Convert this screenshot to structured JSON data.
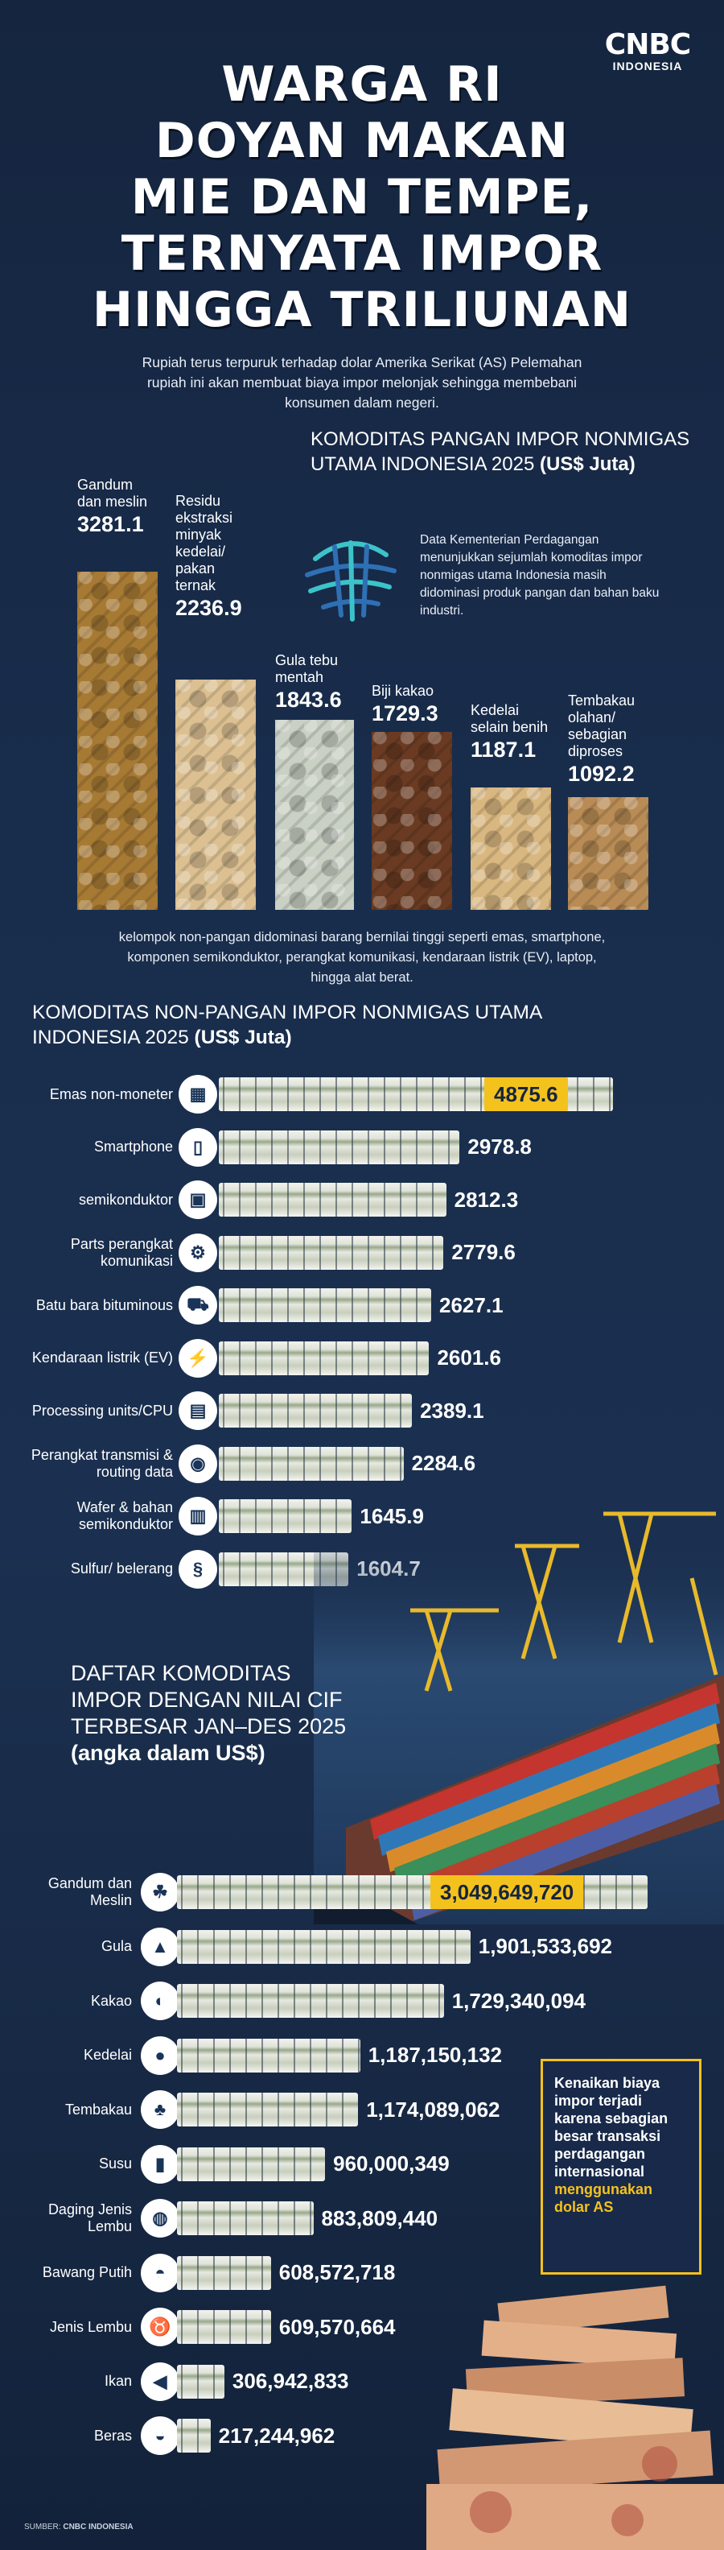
{
  "brand": {
    "name": "CNBC",
    "sub": "INDONESIA"
  },
  "title_lines": [
    "WARGA RI",
    "DOYAN MAKAN",
    "MIE DAN TEMPE,",
    "TERNYATA IMPOR",
    "HINGGA TRILIUNAN"
  ],
  "intro": "Rupiah terus terpuruk terhadap dolar Amerika Serikat (AS) Pelemahan rupiah ini akan membuat biaya impor melonjak sehingga membebani konsumen dalam negeri.",
  "section_food": {
    "title_plain": "KOMODITAS PANGAN IMPOR NONMIGAS UTAMA INDONESIA 2025",
    "title_unit": "(US$ Juta)",
    "description": "Data Kementerian Perdagangan menunjukkan sejumlah komoditas impor nonmigas utama Indonesia masih didominasi produk pangan dan bahan baku industri.",
    "icon": "ministry-logo-icon"
  },
  "commodities_note": "kelompok non-pangan didominasi barang bernilai tinggi seperti emas, smartphone, komponen semikonduktor, perangkat komunikasi, kendaraan listrik (EV), laptop, hingga alat berat.",
  "section_nonfood": {
    "title_plain": "KOMODITAS NON-PANGAN IMPOR NONMIGAS UTAMA INDONESIA 2025",
    "title_unit": "(US$ Juta)"
  },
  "section_cif": {
    "title": "DAFTAR KOMODITAS IMPOR DENGAN NILAI CIF TERBESAR JAN–DES 2025",
    "subtitle": "(angka dalam US$)"
  },
  "callout": {
    "text": "Kenaikan biaya impor terjadi karena sebagian besar transaksi perdagangan internasional",
    "highlight": "menggunakan dolar AS"
  },
  "source": {
    "label": "SUMBER:",
    "name": "CNBC INDONESIA"
  },
  "colors": {
    "background": "#182c4b",
    "highlight": "#f4c21d",
    "text": "#ffffff"
  },
  "chart_data": [
    {
      "type": "bar",
      "title": "KOMODITAS PANGAN IMPOR NONMIGAS UTAMA INDONESIA 2025 (US$ Juta)",
      "categories": [
        "Gandum dan meslin",
        "Residu ekstraksi minyak kedelai/ pakan ternak",
        "Gula tebu mentah",
        "Biji kakao",
        "Kedelai selain benih",
        "Tembakau olahan/ sebagian diproses"
      ],
      "values": [
        3281.1,
        2236.9,
        1843.6,
        1729.3,
        1187.1,
        1092.2
      ],
      "value_labels": [
        "3281.1",
        "2236.9",
        "1843.6",
        "1729.3",
        "1187.1",
        "1092.2"
      ],
      "images": [
        "wheat",
        "soybean-meal",
        "sugarcane",
        "cocoa-beans",
        "soybeans",
        "tobacco"
      ]
    },
    {
      "type": "bar",
      "orientation": "horizontal",
      "title": "KOMODITAS NON-PANGAN IMPOR NONMIGAS UTAMA INDONESIA 2025 (US$ Juta)",
      "categories": [
        "Emas non-moneter",
        "Smartphone",
        "semikonduktor",
        "Parts perangkat komunikasi",
        "Batu bara bituminous",
        "Kendaraan listrik (EV)",
        "Processing units/CPU",
        "Perangkat transmisi & routing data",
        "Wafer & bahan semikonduktor",
        "Sulfur/ belerang"
      ],
      "values": [
        4875.6,
        2978.8,
        2812.3,
        2779.6,
        2627.1,
        2601.6,
        2389.1,
        2284.6,
        1645.9,
        1604.7
      ],
      "value_labels": [
        "4875.6",
        "2978.8",
        "2812.3",
        "2779.6",
        "2627.1",
        "2601.6",
        "2389.1",
        "2284.6",
        "1645.9",
        "1604.7"
      ],
      "icons": [
        "gold-bars-icon",
        "smartphone-icon",
        "chip-icon",
        "gear-signal-icon",
        "coal-cart-icon",
        "ev-charging-icon",
        "cpu-icon",
        "router-icon",
        "wafer-icon",
        "sulfur-jar-icon"
      ],
      "highlight_index": 0
    },
    {
      "type": "bar",
      "orientation": "horizontal",
      "title": "DAFTAR KOMODITAS IMPOR DENGAN NILAI CIF TERBESAR JAN–DES 2025 (angka dalam US$)",
      "categories": [
        "Gandum dan Meslin",
        "Gula",
        "Kakao",
        "Kedelai",
        "Tembakau",
        "Susu",
        "Daging Jenis Lembu",
        "Bawang Putih",
        "Jenis Lembu",
        "Ikan",
        "Beras"
      ],
      "values": [
        3049649720,
        1901533692,
        1729340094,
        1187150132,
        1174089062,
        960000349,
        883809440,
        608572718,
        609570664,
        306942833,
        217244962
      ],
      "value_labels": [
        "3,049,649,720",
        "1,901,533,692",
        "1,729,340,094",
        "1,187,150,132",
        "1,174,089,062",
        "960,000,349",
        "883,809,440",
        "608,572,718",
        "609,570,664",
        "306,942,833",
        "217,244,962"
      ],
      "icons": [
        "wheat-icon",
        "sugar-icon",
        "cocoa-icon",
        "soybean-icon",
        "tobacco-leaf-icon",
        "milk-icon",
        "steak-icon",
        "garlic-icon",
        "cow-icon",
        "fish-icon",
        "rice-icon"
      ],
      "highlight_index": 0
    }
  ]
}
